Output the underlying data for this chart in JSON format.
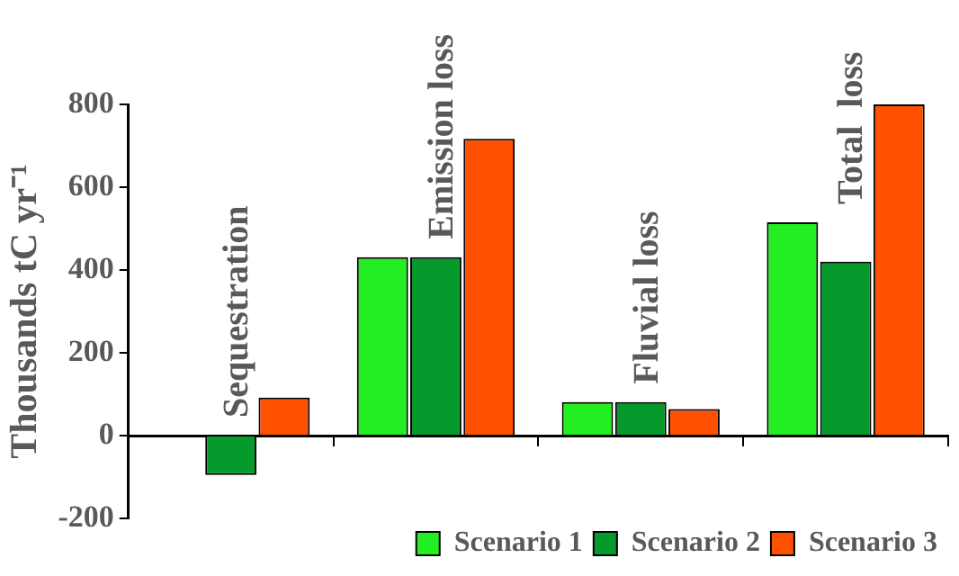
{
  "chart_data": {
    "type": "bar",
    "ylabel": "Thousands tC yr⁻¹",
    "categories": [
      "Sequestration",
      "Emission loss",
      "Fluvial loss",
      "Total  loss"
    ],
    "series": [
      {
        "name": "Scenario 1",
        "color": "#22ee22",
        "values": [
          0,
          431,
          81,
          515
        ]
      },
      {
        "name": "Scenario 2",
        "color": "#069a2c",
        "values": [
          -95,
          431,
          81,
          420
        ]
      },
      {
        "name": "Scenario 3",
        "color": "#ff5000",
        "values": [
          92,
          717,
          64,
          800
        ]
      }
    ],
    "ylim": [
      -200,
      800
    ],
    "yticks": [
      -200,
      0,
      200,
      400,
      600,
      800
    ],
    "grid": false,
    "legend": "bottom"
  }
}
